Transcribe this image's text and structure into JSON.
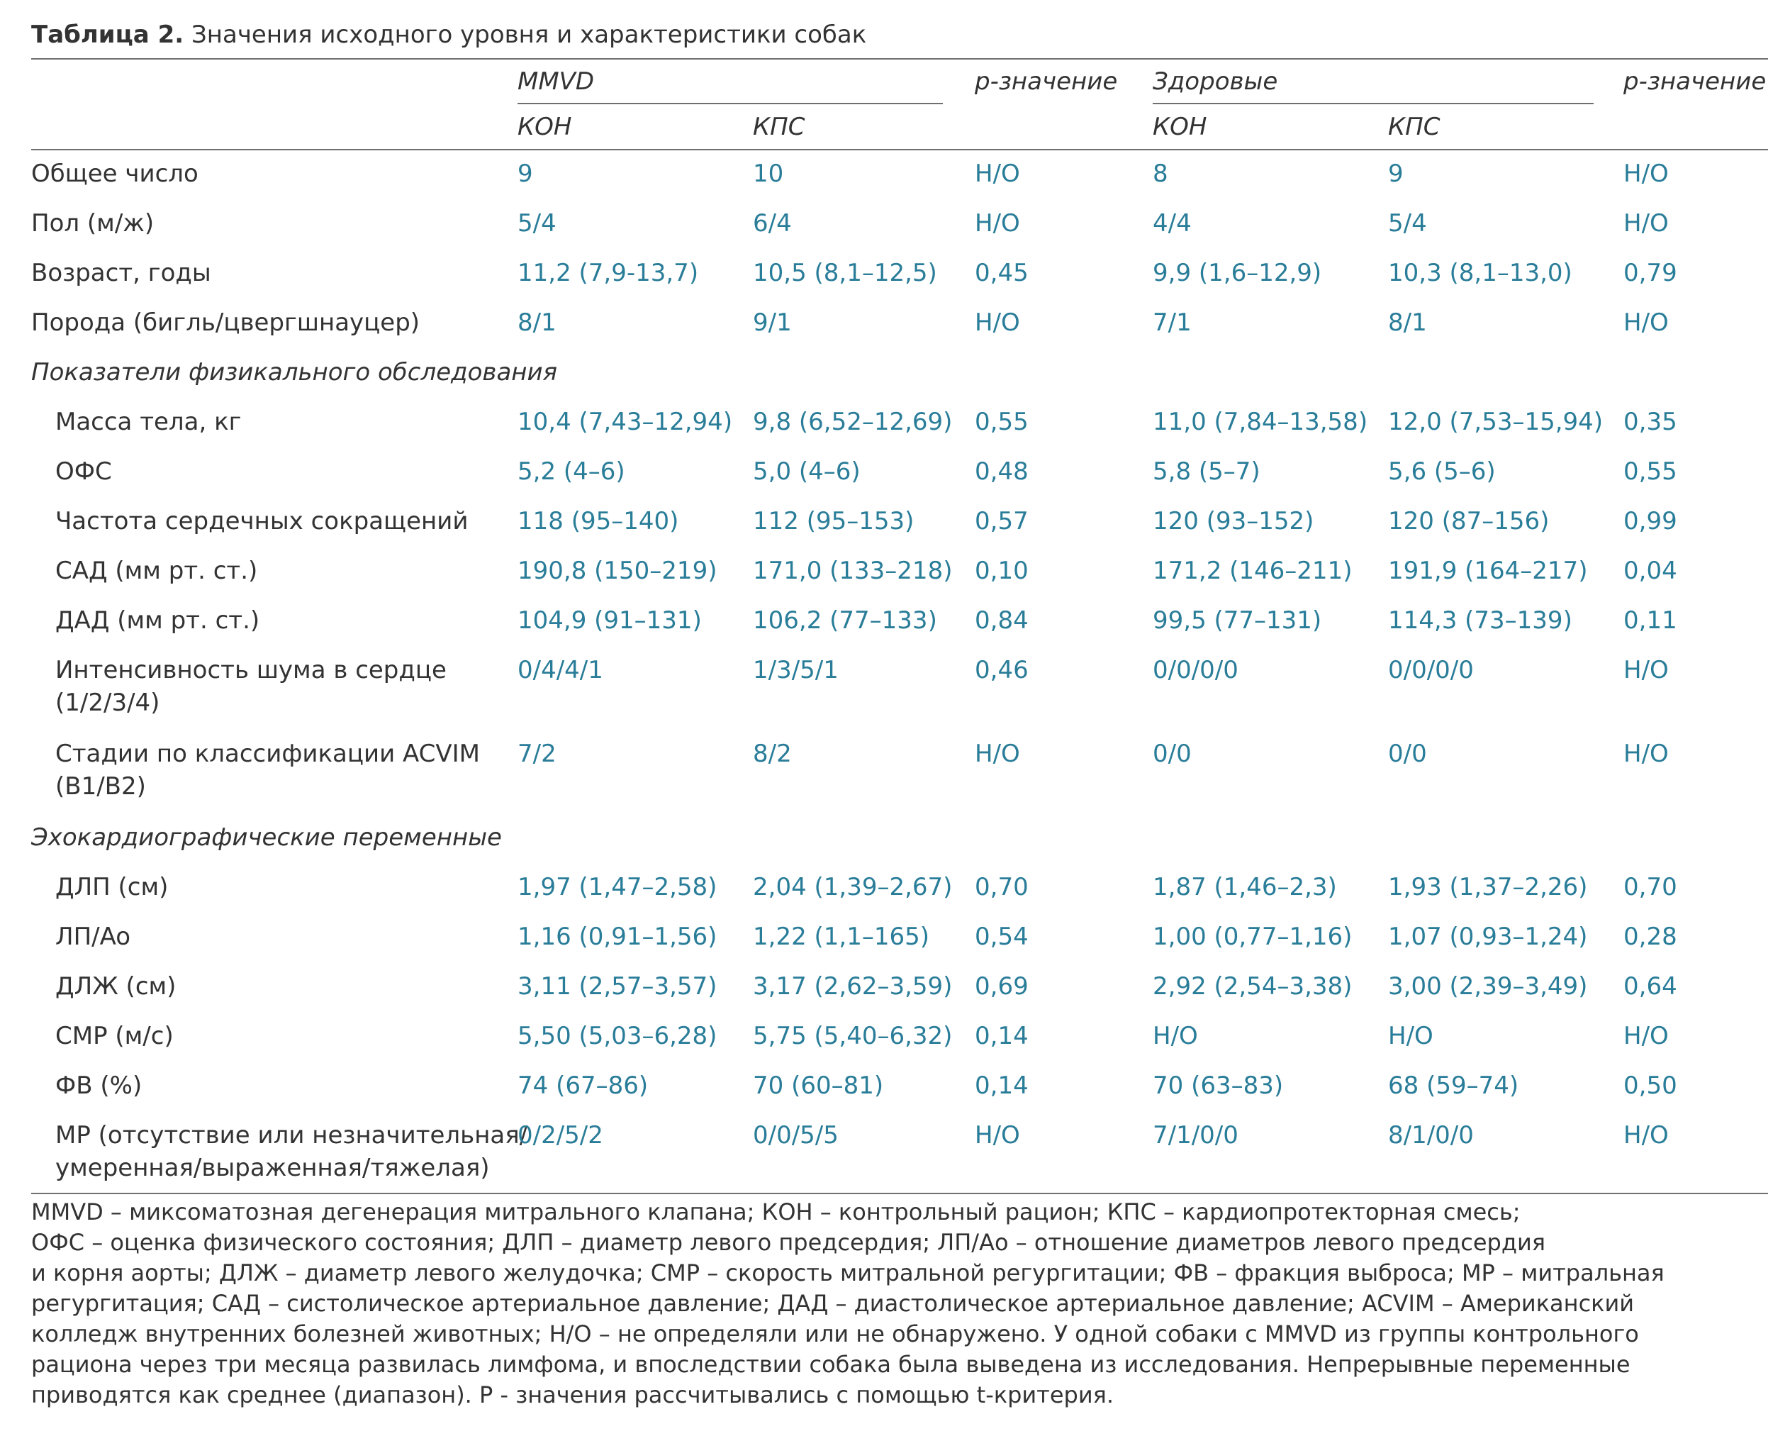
{
  "caption": {
    "label": "Таблица 2.",
    "text": " Значения исходного уровня и характеристики собак"
  },
  "headers": {
    "group1": "MMVD",
    "group2": "Здоровые",
    "pvalue1": "p-значение",
    "pvalue2": "p-значение",
    "kon1": "КОН",
    "kps1": "КПС",
    "kon2": "КОН",
    "kps2": "КПС"
  },
  "rows": [
    {
      "label": "Общее число",
      "c1": "9",
      "c2": "10",
      "p1": "Н/О",
      "c3": "8",
      "c4": "9",
      "p2": "Н/О"
    },
    {
      "label": "Пол (м/ж)",
      "c1": "5/4",
      "c2": "6/4",
      "p1": "Н/О",
      "c3": "4/4",
      "c4": "5/4",
      "p2": "Н/О"
    },
    {
      "label": "Возраст, годы",
      "c1": "11,2 (7,9-13,7)",
      "c2": "10,5 (8,1–12,5)",
      "p1": "0,45",
      "c3": "9,9 (1,6–12,9)",
      "c4": "10,3 (8,1–13,0)",
      "p2": "0,79"
    },
    {
      "label": "Порода (бигль/цвергшнауцер)",
      "c1": "8/1",
      "c2": "9/1",
      "p1": "Н/О",
      "c3": "7/1",
      "c4": "8/1",
      "p2": "Н/О"
    }
  ],
  "section1": "Показатели физикального обследования",
  "rows_phys": [
    {
      "label": "Масса тела, кг",
      "c1": "10,4 (7,43–12,94)",
      "c2": "9,8 (6,52–12,69)",
      "p1": "0,55",
      "c3": "11,0 (7,84–13,58)",
      "c4": "12,0 (7,53–15,94)",
      "p2": "0,35"
    },
    {
      "label": "ОФС",
      "c1": "5,2 (4–6)",
      "c2": "5,0 (4–6)",
      "p1": "0,48",
      "c3": "5,8 (5–7)",
      "c4": "5,6 (5–6)",
      "p2": "0,55"
    },
    {
      "label": "Частота сердечных сокращений",
      "c1": "118 (95–140)",
      "c2": "112 (95–153)",
      "p1": "0,57",
      "c3": "120 (93–152)",
      "c4": "120 (87–156)",
      "p2": "0,99"
    },
    {
      "label": "САД (мм рт. ст.)",
      "c1": "190,8 (150–219)",
      "c2": "171,0 (133–218)",
      "p1": "0,10",
      "c3": "171,2 (146–211)",
      "c4": "191,9 (164–217)",
      "p2": "0,04"
    },
    {
      "label": "ДАД (мм рт. ст.)",
      "c1": "104,9 (91–131)",
      "c2": "106,2 (77–133)",
      "p1": "0,84",
      "c3": "99,5 (77–131)",
      "c4": "114,3 (73–139)",
      "p2": "0,11"
    },
    {
      "label": "Интенсивность шума в сердце",
      "label2": "(1/2/3/4)",
      "c1": "0/4/4/1",
      "c2": "1/3/5/1",
      "p1": "0,46",
      "c3": "0/0/0/0",
      "c4": "0/0/0/0",
      "p2": "Н/О"
    },
    {
      "label": "Стадии по классификации ACVIM",
      "label2": "(B1/B2)",
      "c1": "7/2",
      "c2": "8/2",
      "p1": "Н/О",
      "c3": "0/0",
      "c4": "0/0",
      "p2": "Н/О"
    }
  ],
  "section2": "Эхокардиографические переменные",
  "rows_echo": [
    {
      "label": "ДЛП (см)",
      "c1": "1,97 (1,47–2,58)",
      "c2": "2,04 (1,39–2,67)",
      "p1": "0,70",
      "c3": "1,87 (1,46–2,3)",
      "c4": "1,93 (1,37–2,26)",
      "p2": "0,70"
    },
    {
      "label": "ЛП/Ao",
      "c1": "1,16 (0,91–1,56)",
      "c2": "1,22 (1,1–165)",
      "p1": "0,54",
      "c3": "1,00 (0,77–1,16)",
      "c4": "1,07 (0,93–1,24)",
      "p2": "0,28"
    },
    {
      "label": "ДЛЖ (см)",
      "c1": "3,11 (2,57–3,57)",
      "c2": "3,17 (2,62–3,59)",
      "p1": "0,69",
      "c3": "2,92 (2,54–3,38)",
      "c4": "3,00 (2,39–3,49)",
      "p2": "0,64"
    },
    {
      "label": "СМР (м/с)",
      "c1": "5,50 (5,03–6,28)",
      "c2": "5,75 (5,40–6,32)",
      "p1": "0,14",
      "c3": "Н/О",
      "c4": "Н/О",
      "p2": "Н/О"
    },
    {
      "label": "ФВ (%)",
      "c1": "74 (67–86)",
      "c2": "70 (60–81)",
      "p1": "0,14",
      "c3": "70 (63–83)",
      "c4": "68 (59–74)",
      "p2": "0,50"
    },
    {
      "label": "МР (отсутствие или незначительная/",
      "label2": "умеренная/выраженная/тяжелая)",
      "c1": "0/2/5/2",
      "c2": "0/0/5/5",
      "p1": "Н/О",
      "c3": "7/1/0/0",
      "c4": "8/1/0/0",
      "p2": "Н/О"
    }
  ],
  "footnote": [
    "MMVD – миксоматозная дегенерация митрального клапана; КОН – контрольный рацион; КПС – кардиопротекторная смесь;",
    "ОФС – оценка физического состояния; ДЛП – диаметр левого предсердия; ЛП/Ао – отношение диаметров левого предсердия",
    "и корня аорты; ДЛЖ – диаметр левого желудочка; СМР – скорость митральной регургитации; ФВ – фракция выброса; МР – митральная",
    "регургитация; САД – систолическое артериальное давление; ДАД – диастолическое артериальное давление; ACVIM – Американский",
    "колледж внутренних болезней животных; Н/О – не определяли или не обнаружено. У одной собаки с MMVD из группы контрольного",
    "рациона через три месяца развилась лимфома, и впоследствии собака была выведена из исследования. Непрерывные переменные",
    "приводятся как среднее (диапазон). Р - значения рассчитывались с помощью t-критерия."
  ]
}
